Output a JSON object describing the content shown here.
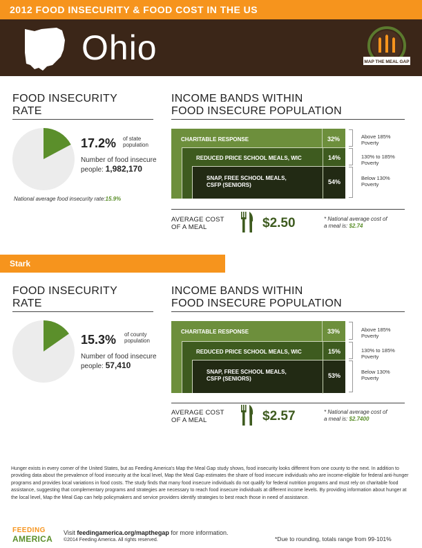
{
  "header": {
    "title": "2012 FOOD INSECURITY & FOOD COST IN THE US",
    "state": "Ohio",
    "logo_text": "MAP THE MEAL GAP"
  },
  "colors": {
    "orange": "#f6941d",
    "brown": "#3b2618",
    "green_light": "#6d8f3c",
    "green_mid": "#3e5b1f",
    "green_dark": "#222a14"
  },
  "state_section": {
    "fi_title_1": "FOOD INSECURITY",
    "fi_title_2": "RATE",
    "rate": "17.2%",
    "rate_fraction": 0.172,
    "rate_note_1": "of state",
    "rate_note_2": "population",
    "num_label_1": "Number of food insecure",
    "num_label_2": "people:",
    "num_value": "1,982,170",
    "national_avg_label": "National average food insecurity rate:",
    "national_avg_value": "15.9%",
    "ib_title_1": "INCOME BANDS WITHIN",
    "ib_title_2": "FOOD INSECURE POPULATION",
    "bands": [
      {
        "label": "CHARITABLE RESPONSE",
        "pct": "32%",
        "note_1": "Above 185%",
        "note_2": "Poverty"
      },
      {
        "label": "REDUCED PRICE SCHOOL MEALS, WIC",
        "pct": "14%",
        "note_1": "130% to 185%",
        "note_2": "Poverty"
      },
      {
        "label_1": "SNAP, FREE SCHOOL MEALS,",
        "label_2": "CSFP (SENIORS)",
        "pct": "54%",
        "note_1": "Below 130%",
        "note_2": "Poverty"
      }
    ],
    "cost_label_1": "AVERAGE COST",
    "cost_label_2": "OF A MEAL",
    "cost_value": "$2.50",
    "cost_note_1": "* National average cost of",
    "cost_note_2": "a meal is:",
    "cost_note_value": "$2.74"
  },
  "county_section": {
    "county_name": "Stark",
    "fi_title_1": "FOOD INSECURITY",
    "fi_title_2": "RATE",
    "rate": "15.3%",
    "rate_fraction": 0.153,
    "rate_note_1": "of county",
    "rate_note_2": "population",
    "num_label_1": "Number of food insecure",
    "num_label_2": "people:",
    "num_value": "57,410",
    "ib_title_1": "INCOME BANDS WITHIN",
    "ib_title_2": "FOOD INSECURE POPULATION",
    "bands": [
      {
        "label": "CHARITABLE RESPONSE",
        "pct": "33%",
        "note_1": "Above 185%",
        "note_2": "Poverty"
      },
      {
        "label": "REDUCED PRICE SCHOOL MEALS, WIC",
        "pct": "15%",
        "note_1": "130% to 185%",
        "note_2": "Poverty"
      },
      {
        "label_1": "SNAP, FREE SCHOOL MEALS,",
        "label_2": "CSFP (SENIORS)",
        "pct": "53%",
        "note_1": "Below 130%",
        "note_2": "Poverty"
      }
    ],
    "cost_label_1": "AVERAGE COST",
    "cost_label_2": "OF A MEAL",
    "cost_value": "$2.57",
    "cost_note_1": "* National average cost of",
    "cost_note_2": "a meal is:",
    "cost_note_value": "$2.7400"
  },
  "footer": {
    "paragraph": "Hunger exists in every corner of the United States, but as Feeding America's Map the Meal Gap study shows, food insecurity looks different from one county to the next. In addition to providing data about the prevalence of food insecurity at the local level, Map the Meal Gap estimates the share of food insecure individuals who are income-eligible for federal anti-hunger programs and provides local variations in food costs. The study finds that many food insecure individuals do not qualify for federal nutrition programs and must rely on charitable food assistance, suggesting that complementary programs and strategies are necessary to reach food insecure individuals at different income levels. By providing information about hunger at the local level, Map the Meal Gap can help policymakers and service providers identify strategies to best reach those in need of assistance.",
    "logo_top": "FEEDING",
    "logo_bottom": "AMERICA",
    "visit_prefix": "Visit",
    "visit_url": "feedingamerica.org/mapthegap",
    "visit_suffix": "for more information.",
    "copyright": "©2014 Feeding America. All rights reserved.",
    "rounding": "*Due to rounding, totals range from 99-101%"
  }
}
